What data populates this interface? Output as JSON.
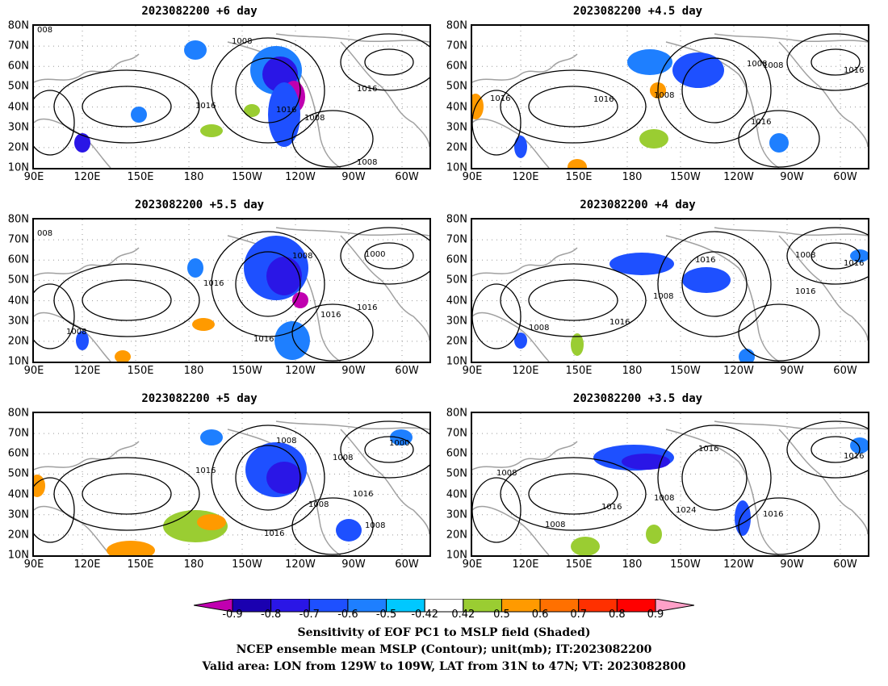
{
  "panels": [
    {
      "title": "2023082200 +6 day",
      "contours": [
        "008",
        "1008",
        "1016",
        "1016",
        "1016",
        "1008",
        "1008"
      ]
    },
    {
      "title": "2023082200 +4.5 day",
      "contours": [
        "1016",
        "1008",
        "1008",
        "1016",
        "1008",
        "1016",
        "1016"
      ]
    },
    {
      "title": "2023082200 +5.5 day",
      "contours": [
        "008",
        "1008",
        "1000",
        "1016",
        "1016",
        "1016",
        "1008",
        "1016"
      ]
    },
    {
      "title": "2023082200 +4 day",
      "contours": [
        "1016",
        "1008",
        "1016",
        "1008",
        "1016",
        "1016",
        "1008"
      ]
    },
    {
      "title": "2023082200 +5 day",
      "contours": [
        "1008",
        "1000",
        "1008",
        "1016",
        "1016",
        "1008",
        "1016",
        "1008"
      ]
    },
    {
      "title": "2023082200 +3.5 day",
      "contours": [
        "1016",
        "1016",
        "1008",
        "1016",
        "1008",
        "1024",
        "1008",
        "1016"
      ]
    }
  ],
  "lat_labels": [
    "80N",
    "70N",
    "60N",
    "50N",
    "40N",
    "30N",
    "20N",
    "10N"
  ],
  "lon_labels": [
    "90E",
    "120E",
    "150E",
    "180",
    "150W",
    "120W",
    "90W",
    "60W"
  ],
  "colorbar": {
    "labels": [
      "-0.9",
      "-0.8",
      "-0.7",
      "-0.6",
      "-0.5",
      "-0.42",
      "0.42",
      "0.5",
      "0.6",
      "0.7",
      "0.8",
      "0.9"
    ],
    "colors": [
      "#c000b0",
      "#1a00b0",
      "#2a16e6",
      "#1e50ff",
      "#1e7fff",
      "#00c8ff",
      "#ffffff",
      "#9acd32",
      "#ff9a00",
      "#ff7000",
      "#ff3000",
      "#ff0000",
      "#ffa0c8"
    ]
  },
  "caption": {
    "line1": "Sensitivity of EOF PC1 to MSLP field (Shaded)",
    "line2": "NCEP ensemble mean MSLP (Contour); unit(mb); IT:2023082200",
    "line3": "Valid area: LON from 129W to 109W, LAT from 31N to 47N; VT: 2023082800"
  }
}
